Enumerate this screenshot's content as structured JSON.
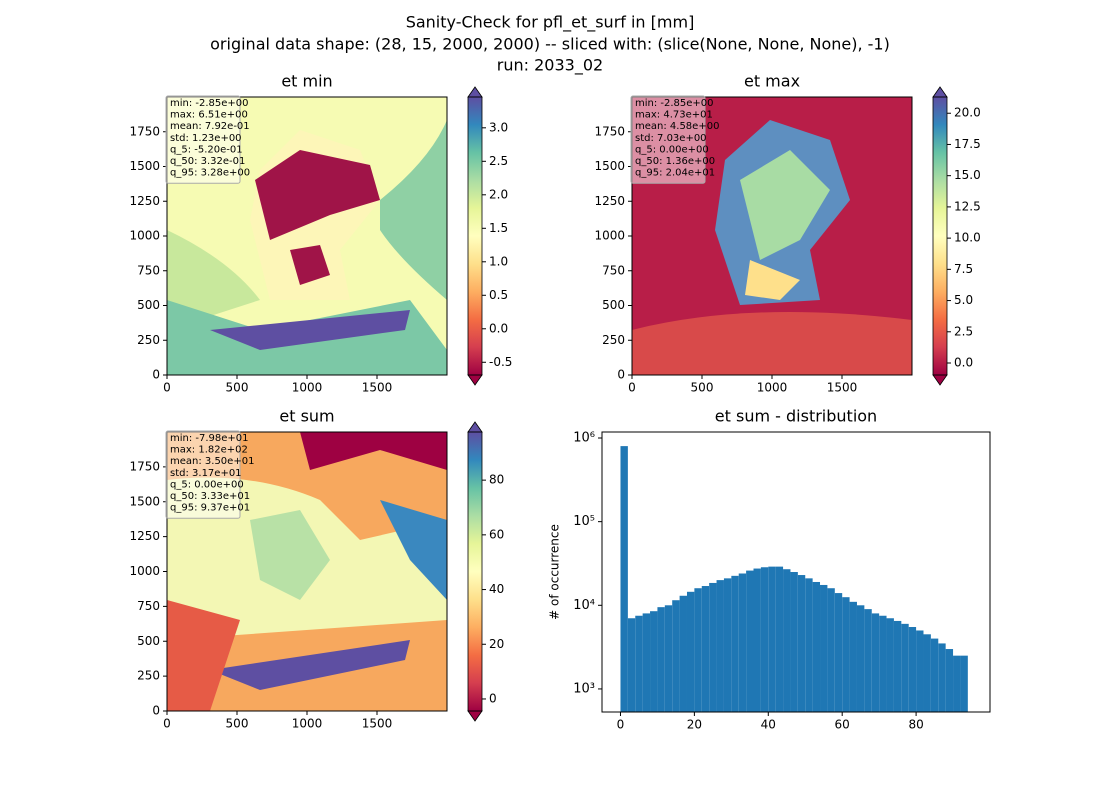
{
  "suptitle": [
    "Sanity-Check for pfl_et_surf in [mm]",
    "original data shape: (28, 15, 2000, 2000) -- sliced with: (slice(None, None, None), -1)",
    "run: 2033_02"
  ],
  "chart_data": [
    {
      "type": "heatmap",
      "title": "et min",
      "stats": [
        "min: -2.85e+00",
        "max: 6.51e+00",
        "mean: 7.92e-01",
        "std: 1.23e+00",
        "q_5: -5.20e-01",
        "q_50: 3.32e-01",
        "q_95: 3.28e+00"
      ],
      "xlim": [
        0,
        2000
      ],
      "ylim": [
        0,
        2000
      ],
      "xticks": [
        0,
        500,
        1000,
        1500
      ],
      "yticks": [
        0,
        250,
        500,
        750,
        1000,
        1250,
        1500,
        1750
      ],
      "clim": [
        -0.69,
        3.46
      ],
      "cticks": [
        -0.5,
        {
          "value": 0,
          "label": "0.0"
        },
        0.5,
        {
          "value": 1,
          "label": "1.0"
        },
        1.5,
        {
          "value": 2,
          "label": "2.0"
        },
        2.5,
        {
          "value": 3,
          "label": "3.0"
        }
      ]
    },
    {
      "type": "heatmap",
      "title": "et max",
      "stats": [
        "min: -2.85e+00",
        "max: 4.73e+01",
        "mean: 4.58e+00",
        "std: 7.03e+00",
        "q_5: 0.00e+00",
        "q_50: 1.36e+00",
        "q_95: 2.04e+01"
      ],
      "xlim": [
        0,
        2000
      ],
      "ylim": [
        0,
        2000
      ],
      "xticks": [
        0,
        500,
        1000,
        1500
      ],
      "yticks": [
        0,
        250,
        500,
        750,
        1000,
        1250,
        1500,
        1750
      ],
      "clim": [
        -0.96,
        21.3
      ],
      "cticks": [
        {
          "value": 0,
          "label": "0.0"
        },
        2.5,
        {
          "value": 5,
          "label": "5.0"
        },
        7.5,
        {
          "value": 10,
          "label": "10.0"
        },
        12.5,
        {
          "value": 15,
          "label": "15.0"
        },
        17.5,
        {
          "value": 20,
          "label": "20.0"
        }
      ]
    },
    {
      "type": "heatmap",
      "title": "et sum",
      "stats": [
        "min: -7.98e+01",
        "max: 1.82e+02",
        "mean: 3.50e+01",
        "std: 3.17e+01",
        "q_5: 0.00e+00",
        "q_50: 3.33e+01",
        "q_95: 9.37e+01"
      ],
      "xlim": [
        0,
        2000
      ],
      "ylim": [
        0,
        2000
      ],
      "xticks": [
        0,
        500,
        1000,
        1500
      ],
      "yticks": [
        0,
        250,
        500,
        750,
        1000,
        1250,
        1500,
        1750
      ],
      "clim": [
        -4.4,
        97.6
      ],
      "cticks": [
        0,
        20,
        40,
        60,
        80
      ]
    },
    {
      "type": "histogram",
      "title": "et sum - distribution",
      "ylabel": "# of occurrence",
      "color": "#1f77b4",
      "log_y": true,
      "bins": [
        0,
        2,
        4,
        6,
        8,
        10,
        12,
        14,
        16,
        18,
        20,
        22,
        24,
        26,
        28,
        30,
        32,
        34,
        36,
        38,
        40,
        42,
        44,
        46,
        48,
        50,
        52,
        54,
        56,
        58,
        60,
        62,
        64,
        66,
        68,
        70,
        72,
        74,
        76,
        78,
        80,
        82,
        84,
        86,
        88,
        90,
        92,
        94
      ],
      "counts": [
        800000,
        7000,
        7500,
        8000,
        8500,
        9500,
        10000,
        11500,
        13000,
        14500,
        16000,
        17000,
        18500,
        20000,
        21000,
        22500,
        24000,
        26000,
        27500,
        28500,
        29000,
        29000,
        27000,
        25000,
        23000,
        21000,
        19000,
        17500,
        16000,
        14000,
        12500,
        11000,
        10000,
        9000,
        8000,
        7500,
        7000,
        6500,
        6000,
        5500,
        5000,
        4500,
        4000,
        3500,
        3000,
        2500,
        2500
      ],
      "xlim": [
        -5,
        100
      ],
      "xticks": [
        0,
        20,
        40,
        60,
        80
      ],
      "ylim": [
        530,
        1180000
      ],
      "yticks": [
        {
          "value": 1000,
          "label": "10³"
        },
        {
          "value": 10000,
          "label": "10⁴"
        },
        {
          "value": 100000,
          "label": "10⁵"
        },
        {
          "value": 1000000,
          "label": "10⁶"
        }
      ]
    }
  ]
}
